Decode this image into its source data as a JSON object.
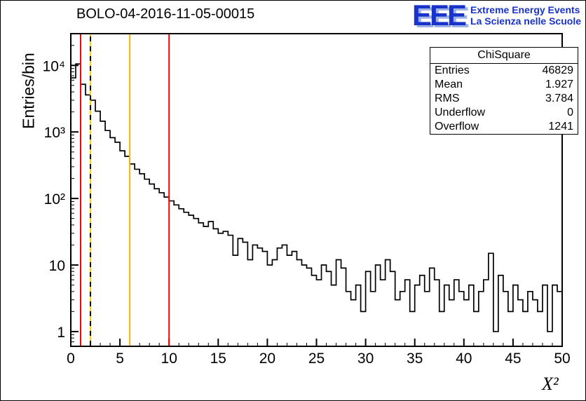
{
  "header": {
    "title": "BOLO-04-2016-11-05-00015",
    "logo": {
      "text": "EEE",
      "line1": "Extreme Energy Events",
      "line2": "La Scienza nelle Scuole"
    }
  },
  "stats": {
    "title": "ChiSquare",
    "rows": [
      {
        "label": "Entries",
        "value": "46829"
      },
      {
        "label": "Mean",
        "value": "1.927"
      },
      {
        "label": "RMS",
        "value": "3.784"
      },
      {
        "label": "Underflow",
        "value": "0"
      },
      {
        "label": "Overflow",
        "value": "1241"
      }
    ]
  },
  "axes": {
    "xlabel": "X²",
    "ylabel": "Entries/bin",
    "x_ticks": [
      0,
      5,
      10,
      15,
      20,
      25,
      30,
      35,
      40,
      45,
      50
    ],
    "y_ticks": [
      {
        "v": 1,
        "label": "1"
      },
      {
        "v": 10,
        "label": "10"
      },
      {
        "v": 100,
        "label": "10²"
      },
      {
        "v": 1000,
        "label": "10³"
      },
      {
        "v": 10000,
        "label": "10⁴"
      }
    ]
  },
  "chart_data": {
    "type": "histogram",
    "title": "BOLO-04-2016-11-05-00015",
    "xlabel": "X²",
    "ylabel": "Entries/bin",
    "y_scale": "log",
    "x_range": [
      0,
      50
    ],
    "y_range": [
      0.6,
      30000
    ],
    "bin_width": 0.5,
    "line_color": "#000000",
    "values": [
      6500,
      10500,
      5200,
      3600,
      3000,
      2050,
      1450,
      1050,
      820,
      700,
      520,
      430,
      330,
      275,
      235,
      195,
      165,
      140,
      122,
      105,
      92,
      80,
      70,
      62,
      56,
      50,
      43,
      38,
      45,
      35,
      30,
      32,
      28,
      14,
      25,
      22,
      12,
      20,
      18,
      16,
      10,
      12,
      18,
      20,
      14,
      16,
      12,
      10,
      9,
      7,
      6,
      10,
      8,
      5,
      12,
      9,
      4,
      3,
      5,
      2,
      8,
      4,
      10,
      6,
      12,
      8,
      3,
      4,
      6,
      2,
      5,
      7,
      4,
      9,
      6,
      2,
      5,
      3,
      6,
      4,
      3,
      5,
      2,
      4,
      6,
      15,
      1,
      7,
      4,
      2,
      5,
      3,
      2,
      4,
      3,
      2,
      5,
      1,
      5,
      4
    ],
    "marker_lines": [
      {
        "x": 1,
        "color": "#ff0000",
        "style": "solid"
      },
      {
        "x": 2,
        "color": "#ffcc00",
        "style": "dashed-black-over-yellow"
      },
      {
        "x": 6,
        "color": "#ffb300",
        "style": "solid"
      },
      {
        "x": 10,
        "color": "#ff0000",
        "style": "solid"
      }
    ]
  }
}
